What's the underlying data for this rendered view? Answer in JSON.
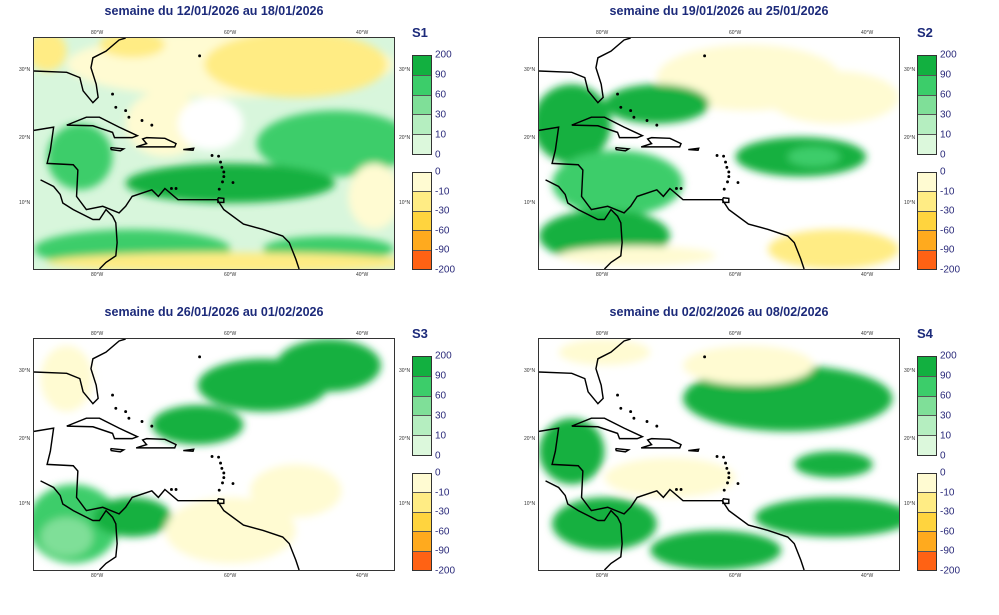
{
  "panels": [
    {
      "id": "S1",
      "title": "semaine du 12/01/2026 au 18/01/2026",
      "background": "#d8f6dc"
    },
    {
      "id": "S2",
      "title": "semaine du 19/01/2026 au 25/01/2026",
      "background": "#ffffff"
    },
    {
      "id": "S3",
      "title": "semaine du 26/01/2026 au 01/02/2026",
      "background": "#ffffff"
    },
    {
      "id": "S4",
      "title": "semaine du 02/02/2026 au 08/02/2026",
      "background": "#ffffff"
    }
  ],
  "axes": {
    "lon_labels": [
      "80°W",
      "60°W",
      "40°W"
    ],
    "lat_labels": [
      "30°N",
      "20°N",
      "10°N"
    ]
  },
  "legend": {
    "positive": {
      "labels": [
        "200",
        "90",
        "60",
        "30",
        "10",
        "0"
      ],
      "colors": [
        "#12b040",
        "#3ccd6a",
        "#7fdf98",
        "#b5eec0",
        "#dcf8dc"
      ]
    },
    "negative": {
      "labels": [
        "0",
        "-10",
        "-30",
        "-60",
        "-90",
        "-200"
      ],
      "colors": [
        "#fffbd2",
        "#ffec84",
        "#ffd43e",
        "#ffaa1e",
        "#ff6214"
      ]
    }
  }
}
